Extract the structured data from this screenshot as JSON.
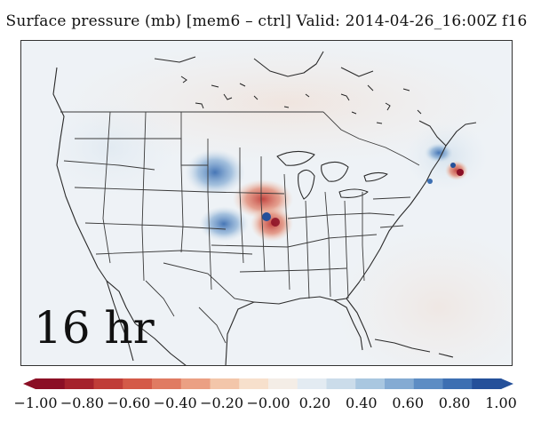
{
  "title": "Surface pressure (mb) [mem6 – ctrl] Valid: 2014-04-26_16:00Z f16",
  "time_label": "16 hr",
  "colorbar": {
    "labels": [
      "−1.00",
      "−0.80",
      "−0.60",
      "−0.40",
      "−0.20",
      "−0.00",
      "0.20",
      "0.40",
      "0.60",
      "0.80",
      "1.00"
    ],
    "colors": [
      "#8b0f25",
      "#a5222c",
      "#c03d38",
      "#d45a48",
      "#e07b62",
      "#eba083",
      "#f3c6aa",
      "#f7e0cc",
      "#f4ede6",
      "#e3ebf2",
      "#cbdcea",
      "#a9c7e0",
      "#84abd3",
      "#5d8dc4",
      "#3d6fb2",
      "#24509a"
    ],
    "min": -1.0,
    "max": 1.0,
    "extend": "both"
  },
  "map": {
    "region": "Continental United States",
    "background_color": "#eef2f6"
  }
}
